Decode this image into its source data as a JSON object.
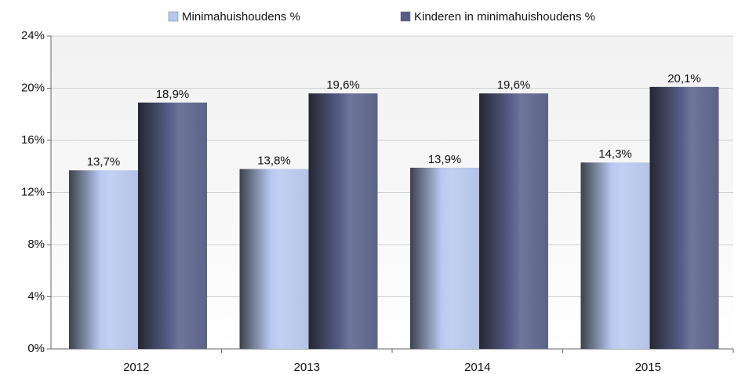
{
  "chart_data": {
    "type": "bar",
    "categories": [
      "2012",
      "2013",
      "2014",
      "2015"
    ],
    "series": [
      {
        "name": "Minimahuishoudens %",
        "color": "#b7c8f0",
        "values": [
          13.7,
          13.8,
          13.9,
          14.3
        ],
        "value_labels": [
          "13,7%",
          "13,8%",
          "13,9%",
          "14,3%"
        ]
      },
      {
        "name": "Kinderen in minimahuishoudens %",
        "color": "#565e88",
        "values": [
          18.9,
          19.6,
          19.6,
          20.1
        ],
        "value_labels": [
          "18,9%",
          "19,6%",
          "19,6%",
          "20,1%"
        ]
      }
    ],
    "ylim": [
      0,
      24
    ],
    "yticks": [
      {
        "value": 0,
        "label": "0%"
      },
      {
        "value": 4,
        "label": "4%"
      },
      {
        "value": 8,
        "label": "8%"
      },
      {
        "value": 12,
        "label": "12%"
      },
      {
        "value": 16,
        "label": "16%"
      },
      {
        "value": 20,
        "label": "20%"
      },
      {
        "value": 24,
        "label": "24%"
      }
    ],
    "grid": true,
    "legend": "top"
  }
}
